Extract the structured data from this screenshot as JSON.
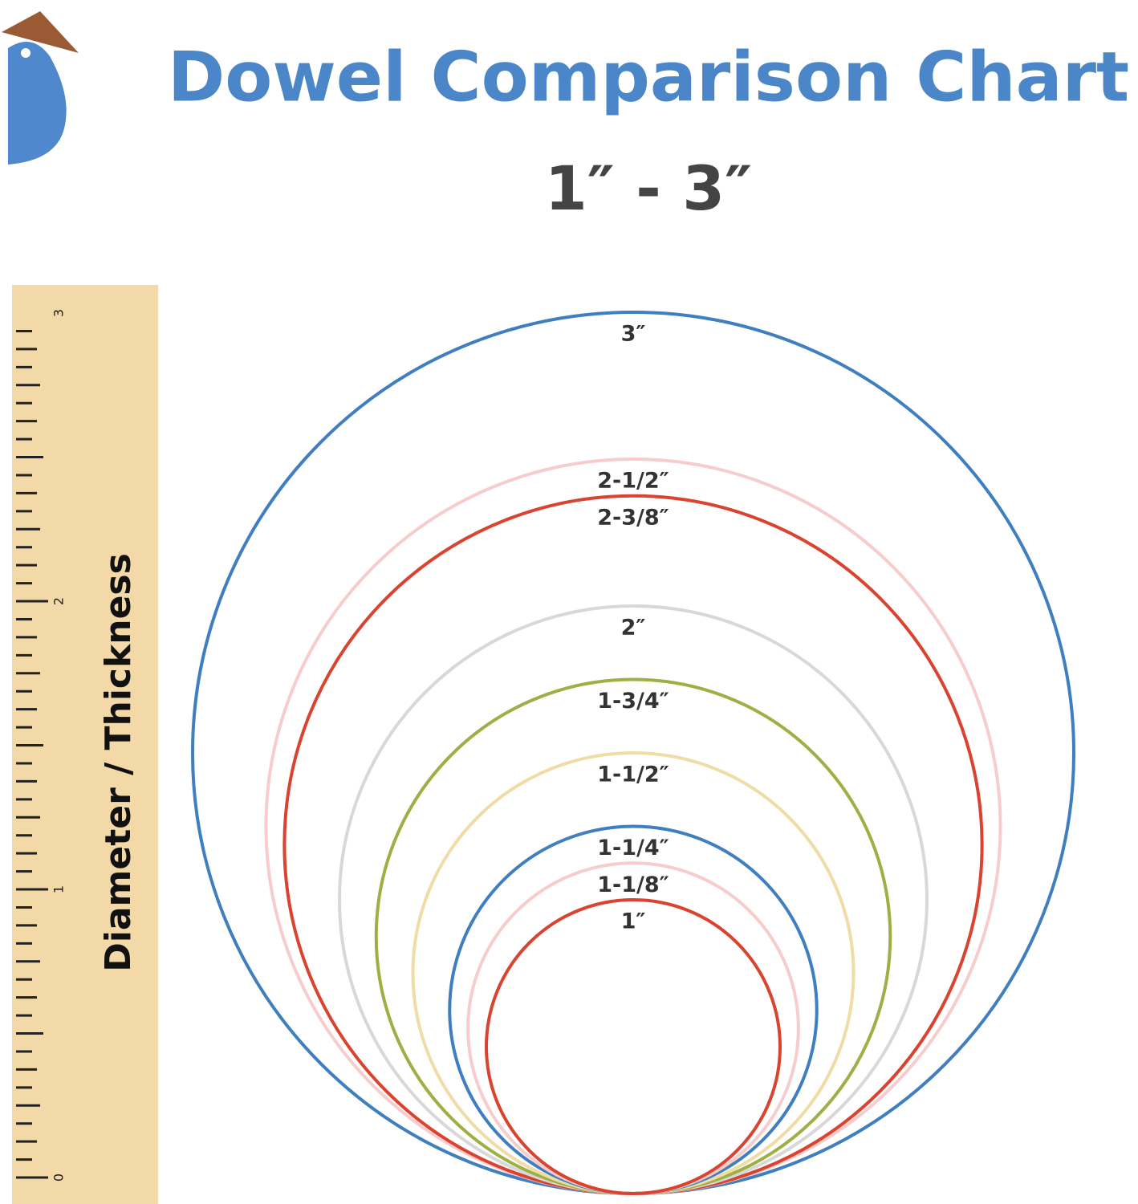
{
  "title": "Dowel Comparison Chart",
  "subtitle": "1″ - 3″",
  "axis_label": "Diameter / Thickness",
  "ruler": {
    "labels": [
      0,
      1,
      2,
      3
    ]
  },
  "circles": [
    {
      "label": "3″",
      "diameter": 3,
      "color": "#3f7fc0"
    },
    {
      "label": "2-1/2″",
      "diameter": 2.5,
      "color": "#f7cccc"
    },
    {
      "label": "2-3/8″",
      "diameter": 2.375,
      "color": "#d9432f"
    },
    {
      "label": "2″",
      "diameter": 2,
      "color": "#d8d8d8"
    },
    {
      "label": "1-3/4″",
      "diameter": 1.75,
      "color": "#9cb045"
    },
    {
      "label": "1-1/2″",
      "diameter": 1.5,
      "color": "#efdca6"
    },
    {
      "label": "1-1/4″",
      "diameter": 1.25,
      "color": "#3f7fc0"
    },
    {
      "label": "1-1/8″",
      "diameter": 1.125,
      "color": "#f7cccc"
    },
    {
      "label": "1″",
      "diameter": 1,
      "color": "#d9432f"
    }
  ]
}
